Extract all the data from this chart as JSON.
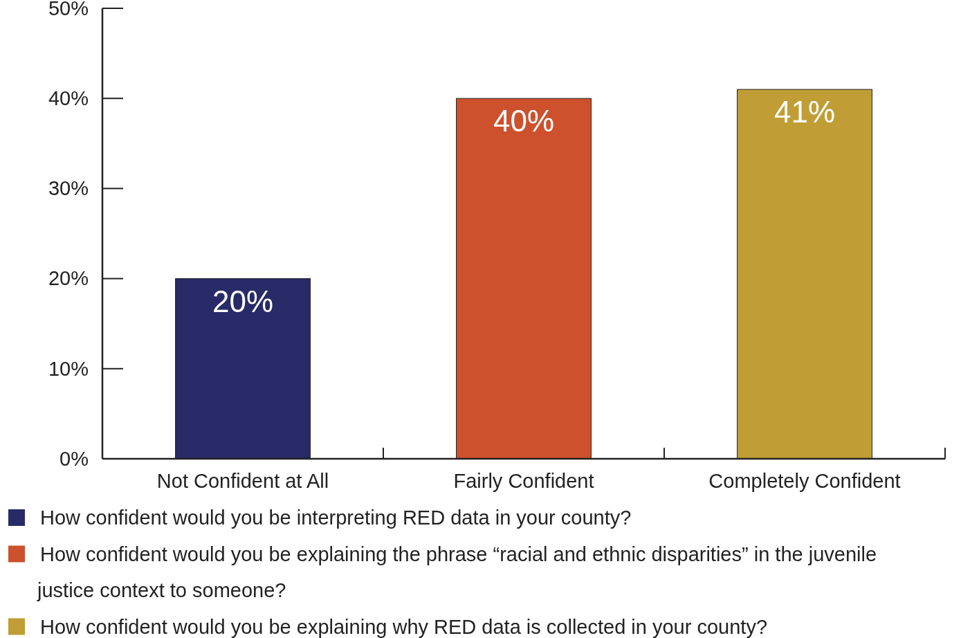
{
  "chart_data": {
    "type": "bar",
    "categories": [
      "Not Confident at All",
      "Fairly Confident",
      "Completely Confident"
    ],
    "series": [
      {
        "name": "How confident would you be interpreting RED data in your county?",
        "color": "#282b67",
        "values": [
          20,
          null,
          null
        ],
        "value_labels": [
          "20%",
          null,
          null
        ]
      },
      {
        "name": "How confident would you be explaining the phrase “racial and ethnic disparities” in the juvenile justice context to someone?",
        "color": "#cd512d",
        "values": [
          null,
          40,
          null
        ],
        "value_labels": [
          null,
          "40%",
          null
        ]
      },
      {
        "name": "How confident would you be explaining why RED data is collected in your county?",
        "color": "#c09d35",
        "values": [
          null,
          null,
          41
        ],
        "value_labels": [
          null,
          null,
          "41%"
        ]
      }
    ],
    "ylim": [
      0,
      50
    ],
    "yticks": [
      {
        "value": 0,
        "label": "0%"
      },
      {
        "value": 10,
        "label": "10%"
      },
      {
        "value": 20,
        "label": "20%"
      },
      {
        "value": 30,
        "label": "30%"
      },
      {
        "value": 40,
        "label": "40%"
      },
      {
        "value": 50,
        "label": "50%"
      }
    ],
    "legend": "bottom",
    "grid": false
  }
}
